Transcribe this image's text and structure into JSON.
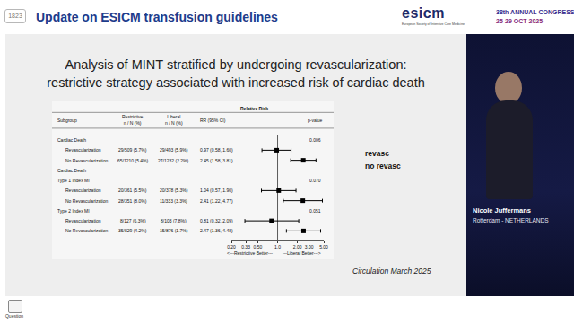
{
  "header": {
    "session_number": "1823",
    "title": "Update on ESICM transfusion guidelines",
    "logo": "esicm",
    "logo_subtitle": "European Society of Intensive Care Medicine",
    "congress": "38th ANNUAL CONGRESS",
    "dates": "25-29 OCT 2025"
  },
  "slide": {
    "title_lines": [
      "Analysis of MINT stratified by undergoing revascularization:",
      "restrictive strategy associated with increased risk of cardiac death"
    ],
    "side_labels": [
      "revasc",
      "no revasc"
    ],
    "source": "Circulation March 2025"
  },
  "speaker": {
    "name": "Nicole Juffermans",
    "location": "Rotterdam - NETHERLANDS"
  },
  "footer": {
    "button": "Question"
  },
  "chart_data": {
    "type": "forest",
    "title": "Relative Risk",
    "columns": [
      [
        "Subgroup"
      ],
      [
        "Restrictive",
        "n / N (%)"
      ],
      [
        "Liberal",
        "n / N (%)"
      ],
      [
        "RR (95% CI)"
      ],
      [
        "p-value"
      ]
    ],
    "rows": [
      {
        "subgroup": "Cardiac Death",
        "p": "0.006"
      },
      {
        "subgroup": "Revascularization",
        "restrictive": "29/509 (5.7%)",
        "liberal": "29/493 (5.9%)",
        "rr": 0.97,
        "ci": [
          0.58,
          1.6
        ],
        "rr_label": "0.97 (0.58, 1.60)"
      },
      {
        "subgroup": "No Revascularization",
        "restrictive": "65/1210 (5.4%)",
        "liberal": "27/1232 (2.2%)",
        "rr": 2.45,
        "ci": [
          1.58,
          3.81
        ],
        "rr_label": "2.45 (1.58, 3.81)"
      },
      {
        "subgroup": "Cardiac Death"
      },
      {
        "subgroup": "Type 1 Index MI",
        "p": "0.070"
      },
      {
        "subgroup": "Revascularization",
        "restrictive": "20/361 (5.5%)",
        "liberal": "20/378 (5.3%)",
        "rr": 1.04,
        "ci": [
          0.57,
          1.9
        ],
        "rr_label": "1.04 (0.57, 1.90)"
      },
      {
        "subgroup": "No Revascularization",
        "restrictive": "28/351 (8.0%)",
        "liberal": "11/333 (3.3%)",
        "rr": 2.41,
        "ci": [
          1.22,
          4.77
        ],
        "rr_label": "2.41 (1.22, 4.77)"
      },
      {
        "subgroup": "Type 2 Index MI",
        "p": "0.051"
      },
      {
        "subgroup": "Revascularization",
        "restrictive": "8/127 (6.3%)",
        "liberal": "8/103 (7.8%)",
        "rr": 0.81,
        "ci": [
          0.32,
          2.09
        ],
        "rr_label": "0.81 (0.32, 2.09)"
      },
      {
        "subgroup": "No Revascularization",
        "restrictive": "35/829 (4.2%)",
        "liberal": "15/876 (1.7%)",
        "rr": 2.47,
        "ci": [
          1.36,
          4.48
        ],
        "rr_label": "2.47 (1.36, 4.48)"
      }
    ],
    "log": "x",
    "xlim": [
      0.2,
      5
    ],
    "xticks": [
      {
        "value": 0.2,
        "label": "0.20"
      },
      0.33,
      {
        "value": 0.5,
        "label": "0.50"
      },
      {
        "value": 1,
        "label": "1.0"
      },
      {
        "value": 2,
        "label": "2.00"
      },
      {
        "value": 3,
        "label": "3.00"
      },
      {
        "value": 5,
        "label": "5.00"
      }
    ],
    "reference_line": 1,
    "x_label_left": "<---Restrictive Better---",
    "x_label_right": "---Liberal Better--->",
    "marker": "square",
    "color": "#000000"
  }
}
